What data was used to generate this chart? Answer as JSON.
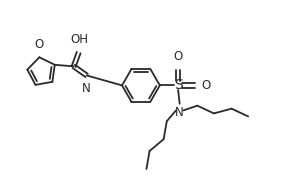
{
  "bg_color": "#ffffff",
  "line_color": "#2a2a2a",
  "line_width": 1.3,
  "font_size": 8.5,
  "figsize": [
    2.91,
    1.83
  ],
  "dpi": 100,
  "xlim": [
    0,
    9.5
  ],
  "ylim": [
    0,
    5.8
  ]
}
